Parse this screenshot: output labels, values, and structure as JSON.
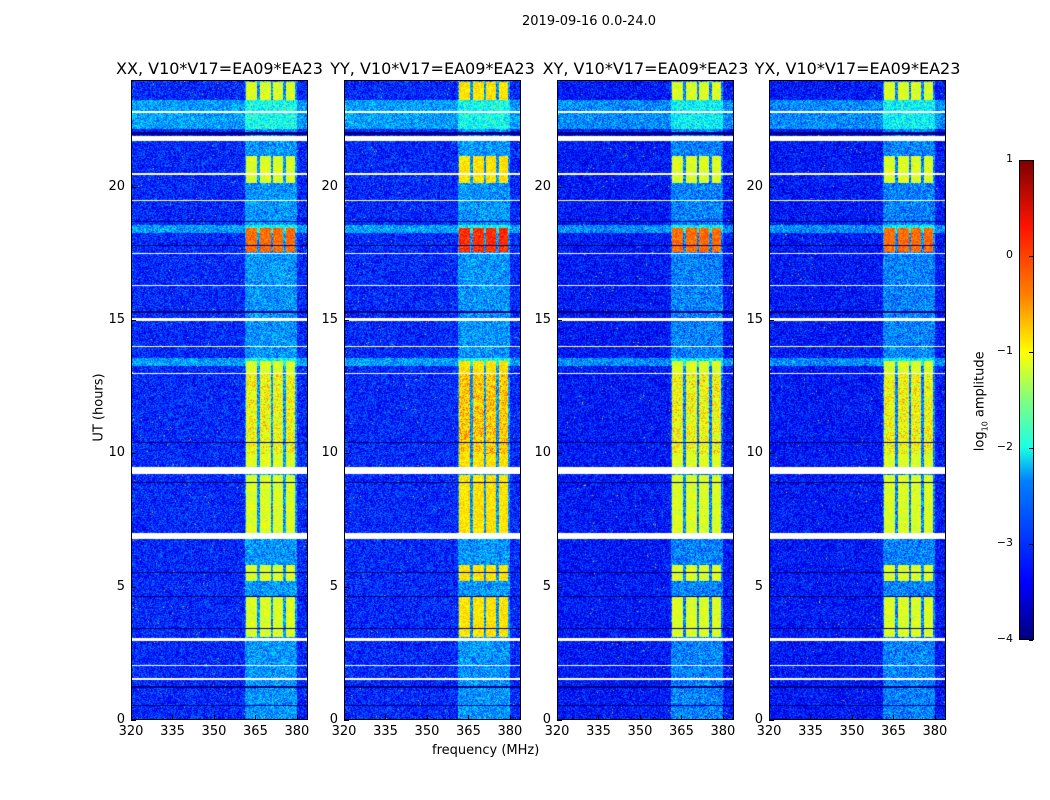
{
  "chart_data": {
    "type": "heatmap",
    "title": "2019-09-16 0.0-24.0",
    "xlabel": "frequency (MHz)",
    "ylabel": "UT (hours)",
    "xlim": [
      320,
      384
    ],
    "ylim": [
      0,
      24
    ],
    "xticks": [
      320,
      335,
      350,
      365,
      380
    ],
    "yticks": [
      0,
      5,
      10,
      15,
      20
    ],
    "panels": [
      {
        "title": "XX, V10*V17=EA09*EA23"
      },
      {
        "title": "YY, V10*V17=EA09*EA23"
      },
      {
        "title": "XY, V10*V17=EA09*EA23"
      },
      {
        "title": "YX, V10*V17=EA09*EA23"
      }
    ],
    "colorbar": {
      "label": "log10 amplitude",
      "label_main": "log",
      "label_sub": "10",
      "label_end": " amplitude",
      "range": [
        -4,
        1
      ],
      "ticks": [
        "1",
        "0",
        "−1",
        "−2",
        "−3",
        "−4"
      ],
      "tick_values": [
        1,
        0,
        -1,
        -2,
        -3,
        -4
      ],
      "colormap": "jet"
    },
    "background_log_amplitude": -3.2,
    "rfi_columns_mhz": [
      [
        361.5,
        365.5
      ],
      [
        366.5,
        370.5
      ],
      [
        371.5,
        375
      ],
      [
        376,
        379.5
      ]
    ],
    "rfi_time_ranges_ut": [
      [
        3.1,
        4.6
      ],
      [
        5.2,
        5.8
      ],
      [
        7,
        9.2
      ],
      [
        9.4,
        13.5
      ],
      [
        17.6,
        18.5
      ],
      [
        20.2,
        21.2
      ],
      [
        23.3,
        24
      ]
    ],
    "flagged_rows_ut": [
      [
        2.95,
        3.05
      ],
      [
        6.8,
        7.0
      ],
      [
        9.25,
        9.5
      ],
      [
        21.75,
        21.95
      ],
      [
        22.8,
        22.9
      ],
      [
        17.5,
        17.55
      ],
      [
        15.0,
        15.1
      ],
      [
        14.0,
        14.05
      ],
      [
        13.0,
        13.05
      ],
      [
        1.5,
        1.55
      ],
      [
        2.0,
        2.05
      ],
      [
        19.5,
        19.55
      ],
      [
        20.5,
        20.55
      ],
      [
        16.3,
        16.35
      ]
    ],
    "dark_rows_ut": [
      [
        0.5,
        0.55
      ],
      [
        1.2,
        1.25
      ],
      [
        3.4,
        3.45
      ],
      [
        4.6,
        4.65
      ],
      [
        5.5,
        5.55
      ],
      [
        8.9,
        8.95
      ],
      [
        10.4,
        10.45
      ],
      [
        15.3,
        15.35
      ],
      [
        17.8,
        17.85
      ],
      [
        18.7,
        18.75
      ],
      [
        22.0,
        22.1
      ]
    ]
  }
}
